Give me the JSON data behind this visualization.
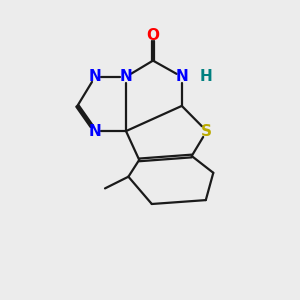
{
  "background_color": "#ececec",
  "bond_color": "#1a1a1a",
  "N_color": "#0000ff",
  "O_color": "#ff0000",
  "S_color": "#bbaa00",
  "H_color": "#008080",
  "line_width": 1.6,
  "font_size_atom": 11,
  "figsize": [
    3.0,
    3.0
  ],
  "dpi": 100,
  "xlim": [
    0,
    10
  ],
  "ylim": [
    0,
    10
  ]
}
